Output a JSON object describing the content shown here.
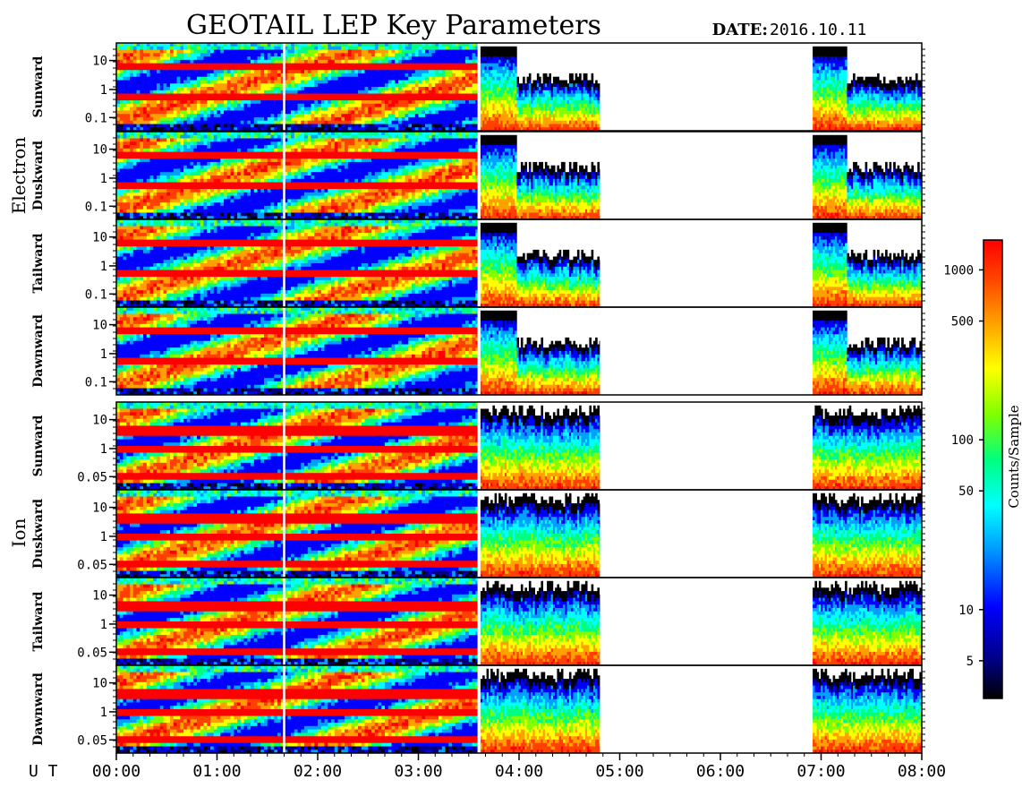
{
  "header": {
    "title": "GEOTAIL LEP Key Parameters",
    "date_label": "DATE:",
    "date_value": "2016.10.11"
  },
  "chart_data": {
    "type": "heatmap",
    "title": "GEOTAIL LEP Key Parameters",
    "x_axis": {
      "label": "U T",
      "ticks": [
        "00:00",
        "01:00",
        "02:00",
        "03:00",
        "04:00",
        "05:00",
        "06:00",
        "07:00",
        "08:00"
      ],
      "range": [
        "00:00",
        "08:00"
      ]
    },
    "colorbar": {
      "label": "Counts/Sample",
      "scale": "log",
      "range": [
        3,
        1500
      ],
      "ticks": [
        "5",
        "10",
        "50",
        "100",
        "500",
        "1000"
      ],
      "colormap": [
        "#000000",
        "#000080",
        "#0000ff",
        "#00a0ff",
        "#00ffff",
        "#00ff80",
        "#80ff00",
        "#ffff00",
        "#ffa000",
        "#ff4000",
        "#ff0000"
      ]
    },
    "groups": [
      {
        "name": "Electron",
        "panels": [
          {
            "name": "Sunward",
            "y_ticks": [
              "10",
              "1",
              "0.1"
            ]
          },
          {
            "name": "Duskward",
            "y_ticks": [
              "10",
              "1",
              "0.1"
            ]
          },
          {
            "name": "Tailward",
            "y_ticks": [
              "10",
              "1",
              "0.1"
            ]
          },
          {
            "name": "Dawnward",
            "y_ticks": [
              "10",
              "1",
              "0.1"
            ]
          }
        ]
      },
      {
        "name": "Ion",
        "panels": [
          {
            "name": "Sunward",
            "y_ticks": [
              "10",
              "1",
              "0.05"
            ]
          },
          {
            "name": "Duskward",
            "y_ticks": [
              "10",
              "1",
              "0.05"
            ]
          },
          {
            "name": "Tailward",
            "y_ticks": [
              "10",
              "1",
              "0.05"
            ]
          },
          {
            "name": "Dawnward",
            "y_ticks": [
              "10",
              "1",
              "0.05"
            ]
          }
        ]
      }
    ],
    "data_intervals_ut": [
      {
        "start": "00:00",
        "end": "03:35",
        "regime": "dense"
      },
      {
        "start": "03:37",
        "end": "04:48",
        "regime": "partial"
      },
      {
        "start": "06:55",
        "end": "08:00",
        "regime": "partial"
      }
    ],
    "data_gap_marker_ut": "01:40"
  }
}
